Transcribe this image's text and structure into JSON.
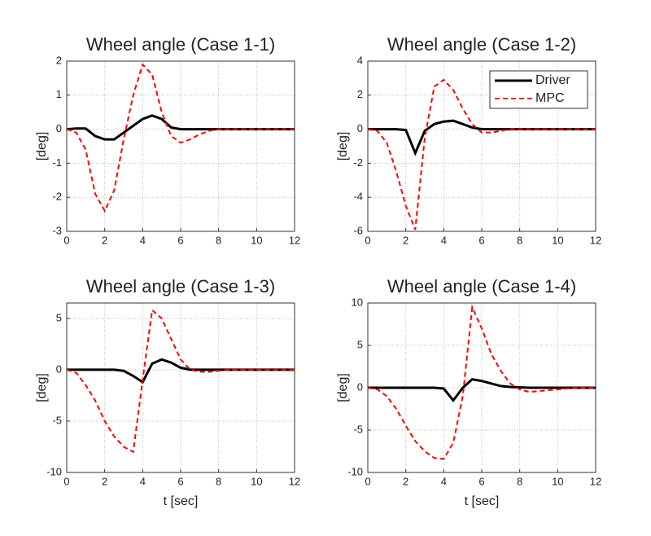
{
  "chart_data": [
    {
      "type": "line",
      "title": "Wheel angle (Case 1-1)",
      "y_label": "[deg]",
      "x": [
        0,
        0.5,
        1,
        1.5,
        2,
        2.5,
        3,
        3.5,
        4,
        4.5,
        5,
        5.5,
        6,
        6.5,
        7,
        7.5,
        8,
        8.5,
        9,
        9.5,
        10,
        10.5,
        11,
        11.5,
        12
      ],
      "series": [
        {
          "color": "#000000",
          "style": "solid",
          "values": [
            0,
            0.02,
            0.02,
            -0.2,
            -0.3,
            -0.3,
            -0.1,
            0.1,
            0.3,
            0.4,
            0.3,
            0.05,
            0,
            0,
            0,
            0,
            0,
            0,
            0,
            0,
            0,
            0,
            0,
            0,
            0
          ]
        },
        {
          "color": "#ff0000",
          "style": "dashed",
          "values": [
            0,
            -0.1,
            -0.6,
            -1.9,
            -2.4,
            -1.8,
            -0.3,
            1.0,
            1.9,
            1.6,
            0.5,
            -0.2,
            -0.4,
            -0.3,
            -0.15,
            -0.05,
            0,
            0,
            0,
            0,
            0,
            0,
            0,
            0,
            0
          ]
        }
      ],
      "xlim": [
        0,
        12
      ],
      "xticks": [
        0,
        2,
        4,
        6,
        8,
        10,
        12
      ],
      "ylim": [
        -3,
        2
      ],
      "yticks": [
        -3,
        -2,
        -1,
        0,
        1,
        2
      ],
      "grid": true
    },
    {
      "type": "line",
      "title": "Wheel angle (Case 1-2)",
      "y_label": "[deg]",
      "x": [
        0,
        0.5,
        1,
        1.5,
        2,
        2.5,
        3,
        3.5,
        4,
        4.5,
        5,
        5.5,
        6,
        6.5,
        7,
        7.5,
        8,
        8.5,
        9,
        9.5,
        10,
        10.5,
        11,
        11.5,
        12
      ],
      "series": [
        {
          "name": "Driver",
          "color": "#000000",
          "style": "solid",
          "values": [
            0,
            0,
            0,
            0,
            -0.05,
            -1.4,
            -0.1,
            0.3,
            0.45,
            0.5,
            0.3,
            0.1,
            0,
            0,
            0,
            0,
            0,
            0,
            0,
            0,
            0,
            0,
            0,
            0,
            0
          ]
        },
        {
          "name": "MPC",
          "color": "#ff0000",
          "style": "dashed",
          "values": [
            0,
            -0.1,
            -0.8,
            -2.5,
            -4.5,
            -5.9,
            -0.5,
            2.5,
            2.9,
            2.3,
            1.2,
            0.3,
            -0.2,
            -0.2,
            -0.1,
            0,
            0,
            0,
            0,
            0,
            0,
            0,
            0,
            0,
            0
          ]
        }
      ],
      "xlim": [
        0,
        12
      ],
      "xticks": [
        0,
        2,
        4,
        6,
        8,
        10,
        12
      ],
      "ylim": [
        -6,
        4
      ],
      "yticks": [
        -6,
        -4,
        -2,
        0,
        2,
        4
      ],
      "grid": true,
      "legend": "northeast"
    },
    {
      "type": "line",
      "title": "Wheel angle (Case 1-3)",
      "y_label": "[deg]",
      "x_label": "t [sec]",
      "x": [
        0,
        0.5,
        1,
        1.5,
        2,
        2.5,
        3,
        3.5,
        4,
        4.5,
        5,
        5.5,
        6,
        6.5,
        7,
        7.5,
        8,
        8.5,
        9,
        9.5,
        10,
        10.5,
        11,
        11.5,
        12
      ],
      "series": [
        {
          "color": "#000000",
          "style": "solid",
          "values": [
            0,
            0,
            0,
            0,
            0,
            0,
            -0.1,
            -0.6,
            -1.2,
            0.6,
            1.0,
            0.7,
            0.2,
            0,
            0,
            0,
            0,
            0,
            0,
            0,
            0,
            0,
            0,
            0,
            0
          ]
        },
        {
          "color": "#ff0000",
          "style": "dashed",
          "values": [
            0,
            -0.3,
            -1.5,
            -3,
            -5,
            -6.5,
            -7.5,
            -8,
            -1,
            5.8,
            5,
            3,
            1,
            0,
            -0.2,
            -0.2,
            -0.1,
            0,
            0,
            0,
            0,
            0,
            0,
            0,
            0
          ]
        }
      ],
      "xlim": [
        0,
        12
      ],
      "xticks": [
        0,
        2,
        4,
        6,
        8,
        10,
        12
      ],
      "ylim": [
        -10,
        6.5
      ],
      "yticks": [
        -10,
        -5,
        0,
        5
      ],
      "grid": true
    },
    {
      "type": "line",
      "title": "Wheel angle (Case 1-4)",
      "y_label": "[deg]",
      "x_label": "t [sec]",
      "x": [
        0,
        0.5,
        1,
        1.5,
        2,
        2.5,
        3,
        3.5,
        4,
        4.5,
        5,
        5.5,
        6,
        6.5,
        7,
        7.5,
        8,
        8.5,
        9,
        9.5,
        10,
        10.5,
        11,
        11.5,
        12
      ],
      "series": [
        {
          "color": "#000000",
          "style": "solid",
          "values": [
            0,
            0,
            0,
            0,
            0,
            0,
            0,
            0,
            -0.1,
            -1.5,
            0,
            1.0,
            0.8,
            0.5,
            0.2,
            0.1,
            0.05,
            0,
            0,
            0,
            0,
            0,
            0,
            0,
            0
          ]
        },
        {
          "color": "#ff0000",
          "style": "dashed",
          "values": [
            0,
            -0.2,
            -1,
            -2.5,
            -4.5,
            -6.3,
            -7.5,
            -8.3,
            -8.4,
            -6.5,
            -1,
            9.5,
            7,
            4,
            2,
            0.5,
            -0.2,
            -0.5,
            -0.4,
            -0.3,
            -0.2,
            -0.1,
            0,
            0,
            0
          ]
        }
      ],
      "xlim": [
        0,
        12
      ],
      "xticks": [
        0,
        2,
        4,
        6,
        8,
        10,
        12
      ],
      "ylim": [
        -10,
        10
      ],
      "yticks": [
        -10,
        -5,
        0,
        5,
        10
      ],
      "grid": true
    }
  ]
}
